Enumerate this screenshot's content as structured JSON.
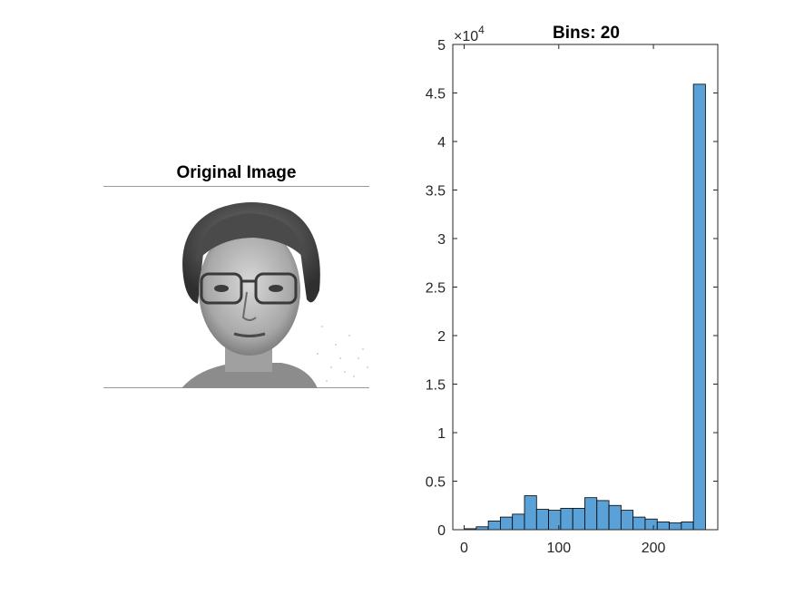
{
  "image_panel": {
    "title": "Original Image",
    "icon": "grayscale-face-photo"
  },
  "chart_data": {
    "type": "bar",
    "title": "Bins: 20",
    "xlabel": "",
    "ylabel": "",
    "y_exponent_label": "×10",
    "y_exponent_power": "4",
    "xlim": [
      -12,
      268
    ],
    "ylim": [
      0,
      5
    ],
    "x_ticks": [
      0,
      100,
      200
    ],
    "x_tick_labels": [
      "0",
      "100",
      "200"
    ],
    "y_ticks": [
      0,
      0.5,
      1,
      1.5,
      2,
      2.5,
      3,
      3.5,
      4,
      4.5,
      5
    ],
    "y_tick_labels": [
      "0",
      "0.5",
      "1",
      "1.5",
      "2",
      "2.5",
      "3",
      "3.5",
      "4",
      "4.5",
      "5"
    ],
    "bin_edges": [
      0,
      12.75,
      25.5,
      38.25,
      51,
      63.75,
      76.5,
      89.25,
      102,
      114.75,
      127.5,
      140.25,
      153,
      165.75,
      178.5,
      191.25,
      204,
      216.75,
      229.5,
      242.25,
      255
    ],
    "values": [
      0.01,
      0.03,
      0.09,
      0.13,
      0.16,
      0.35,
      0.21,
      0.2,
      0.22,
      0.22,
      0.33,
      0.3,
      0.25,
      0.2,
      0.13,
      0.11,
      0.08,
      0.07,
      0.08,
      4.59
    ],
    "bar_color": "#5aa1d8",
    "bar_edge_color": "#000000",
    "grid": false,
    "box": true
  }
}
